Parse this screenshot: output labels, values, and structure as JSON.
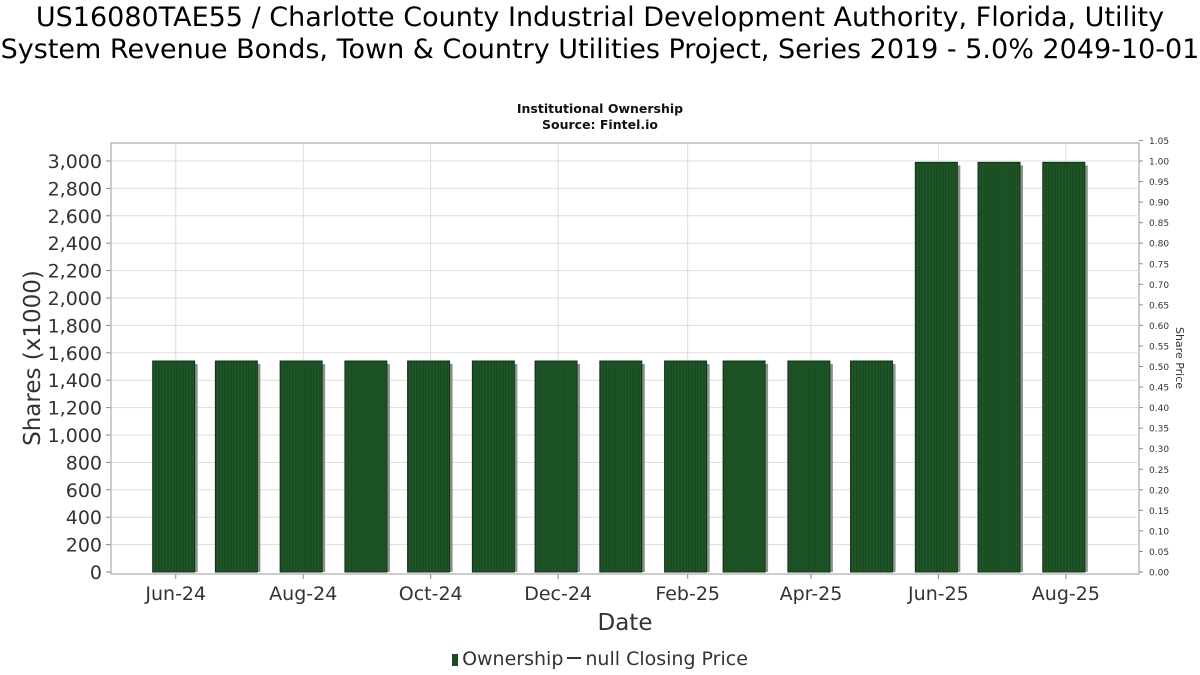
{
  "title": "US16080TAE55 / Charlotte County Industrial Development Authority, Florida, Utility System Revenue Bonds, Town & Country Utilities Project, Series 2019 - 5.0% 2049-10-01",
  "subtitle_lines": [
    "Institutional Ownership",
    "Source: Fintel.io"
  ],
  "legend": {
    "ownership_label": "Ownership",
    "price_label": "null Closing Price"
  },
  "colors": {
    "bar": "#1a4d22",
    "bar_shadow": "#8f8f8f",
    "grid": "#dddddd"
  },
  "chart_data": {
    "type": "bar",
    "title": "US16080TAE55 / Charlotte County Industrial Development Authority, Florida, Utility System Revenue Bonds, Town & Country Utilities Project, Series 2019 - 5.0% 2049-10-01",
    "xlabel": "Date",
    "ylabel": "Shares (x1000)",
    "y2label": "Share Price",
    "ylim": [
      0,
      3150
    ],
    "y2lim": [
      0,
      1.05
    ],
    "yticks": [
      "0",
      "200",
      "400",
      "600",
      "800",
      "1,000",
      "1,200",
      "1,400",
      "1,600",
      "1,800",
      "2,000",
      "2,200",
      "2,400",
      "2,600",
      "2,800",
      "3,000"
    ],
    "y2ticks": [
      "0.00",
      "0.05",
      "0.10",
      "0.15",
      "0.20",
      "0.25",
      "0.30",
      "0.35",
      "0.40",
      "0.45",
      "0.50",
      "0.55",
      "0.60",
      "0.65",
      "0.70",
      "0.75",
      "0.80",
      "0.85",
      "0.90",
      "0.95",
      "1.00",
      "1.05"
    ],
    "xticks": [
      "Jun-24",
      "Aug-24",
      "Oct-24",
      "Dec-24",
      "Feb-25",
      "Apr-25",
      "Jun-25",
      "Aug-25"
    ],
    "categories": [
      "2024-05-31",
      "2024-06-30",
      "2024-07-31",
      "2024-08-31",
      "2024-09-30",
      "2024-10-31",
      "2024-11-30",
      "2024-12-31",
      "2025-01-31",
      "2025-02-28",
      "2025-03-31",
      "2025-04-30",
      "2025-05-31",
      "2025-06-30",
      "2025-07-31"
    ],
    "series": [
      {
        "name": "Ownership",
        "values": [
          1540,
          1540,
          1540,
          1540,
          1540,
          1540,
          1540,
          1540,
          1540,
          1540,
          1540,
          1540,
          2990,
          2990,
          2990
        ]
      }
    ],
    "grid": true,
    "legend_position": "bottom"
  }
}
